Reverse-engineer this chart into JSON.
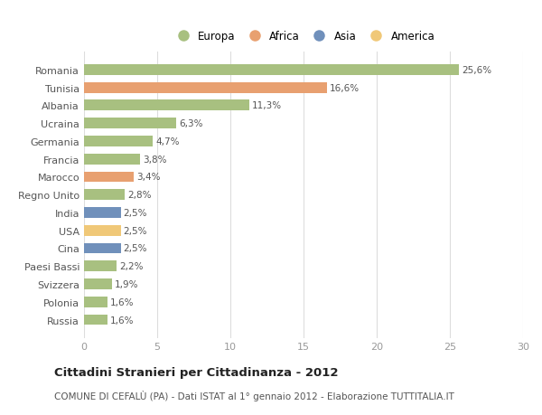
{
  "categories": [
    "Russia",
    "Polonia",
    "Svizzera",
    "Paesi Bassi",
    "Cina",
    "USA",
    "India",
    "Regno Unito",
    "Marocco",
    "Francia",
    "Germania",
    "Ucraina",
    "Albania",
    "Tunisia",
    "Romania"
  ],
  "values": [
    1.6,
    1.6,
    1.9,
    2.2,
    2.5,
    2.5,
    2.5,
    2.8,
    3.4,
    3.8,
    4.7,
    6.3,
    11.3,
    16.6,
    25.6
  ],
  "labels": [
    "1,6%",
    "1,6%",
    "1,9%",
    "2,2%",
    "2,5%",
    "2,5%",
    "2,5%",
    "2,8%",
    "3,4%",
    "3,8%",
    "4,7%",
    "6,3%",
    "11,3%",
    "16,6%",
    "25,6%"
  ],
  "colors": [
    "#a8c080",
    "#a8c080",
    "#a8c080",
    "#a8c080",
    "#7090bb",
    "#f0c878",
    "#7090bb",
    "#a8c080",
    "#e8a070",
    "#a8c080",
    "#a8c080",
    "#a8c080",
    "#a8c080",
    "#e8a070",
    "#a8c080"
  ],
  "legend_labels": [
    "Europa",
    "Africa",
    "Asia",
    "America"
  ],
  "legend_colors": [
    "#a8c080",
    "#e8a070",
    "#7090bb",
    "#f0c878"
  ],
  "title": "Cittadini Stranieri per Cittadinanza - 2012",
  "subtitle": "COMUNE DI CEFALÙ (PA) - Dati ISTAT al 1° gennaio 2012 - Elaborazione TUTTITALIA.IT",
  "xlim": [
    0,
    30
  ],
  "xticks": [
    0,
    5,
    10,
    15,
    20,
    25,
    30
  ],
  "background_color": "#ffffff",
  "grid_color": "#dddddd",
  "bar_label_color": "#555555",
  "bar_label_fontsize": 7.5,
  "ytick_fontsize": 8.0,
  "xtick_fontsize": 8.0,
  "legend_fontsize": 8.5,
  "title_fontsize": 9.5,
  "subtitle_fontsize": 7.5
}
